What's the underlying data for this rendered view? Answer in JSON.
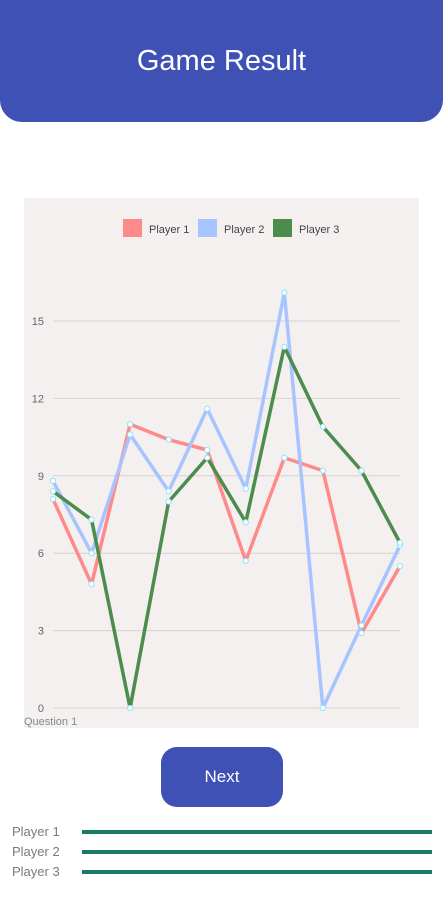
{
  "header": {
    "title": "Game Result"
  },
  "chart_data": {
    "type": "line",
    "legend": "top-center",
    "grid": true,
    "ylim": [
      0,
      17
    ],
    "y_ticks": [
      0,
      3,
      6,
      9,
      12,
      15
    ],
    "x_label_visible": "Question 1",
    "x": [
      1,
      2,
      3,
      4,
      5,
      6,
      7,
      8,
      9,
      10
    ],
    "series": [
      {
        "name": "Player 1",
        "color": "#ff8a8a",
        "values": [
          8.1,
          4.8,
          11.0,
          10.4,
          10.0,
          5.7,
          9.7,
          9.2,
          2.9,
          5.5
        ]
      },
      {
        "name": "Player 2",
        "color": "#a8c4ff",
        "values": [
          8.8,
          6.0,
          10.6,
          8.4,
          11.6,
          8.5,
          16.1,
          0.0,
          3.2,
          6.3
        ]
      },
      {
        "name": "Player 3",
        "color": "#4c8c4c",
        "values": [
          8.4,
          7.3,
          0.0,
          8.0,
          9.7,
          7.2,
          14.0,
          10.9,
          9.2,
          6.4
        ]
      }
    ]
  },
  "next_button": {
    "label": "Next"
  },
  "players": [
    {
      "label": "Player 1"
    },
    {
      "label": "Player 2"
    },
    {
      "label": "Player 3"
    }
  ]
}
